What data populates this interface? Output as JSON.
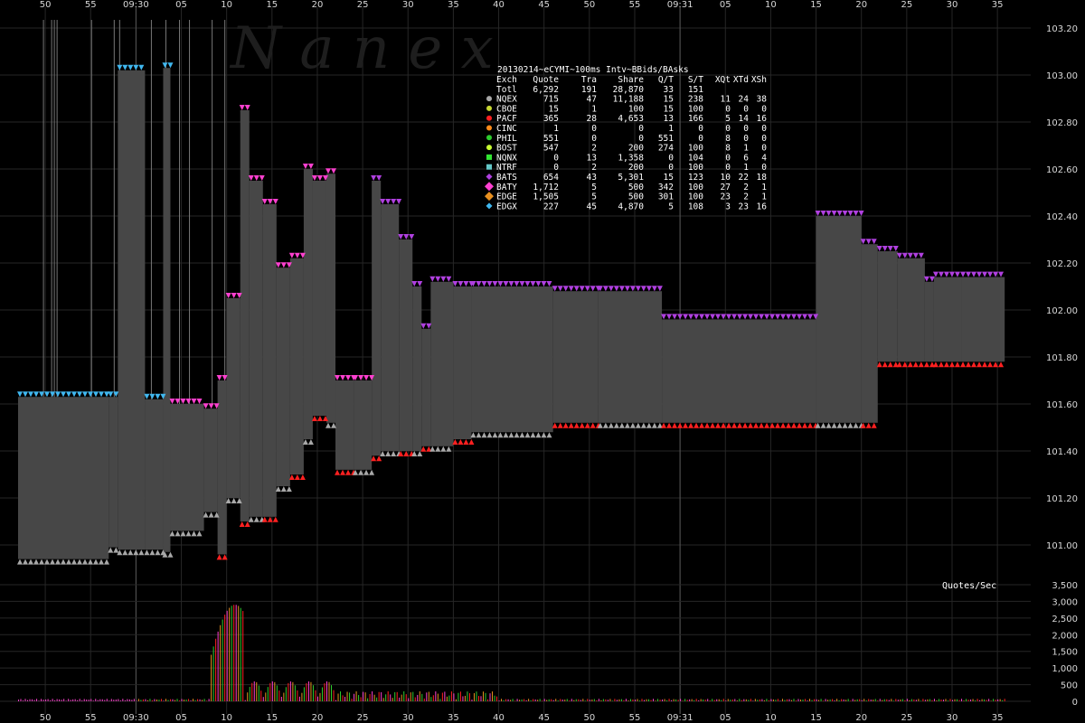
{
  "watermark": "N a n e x",
  "chart_data": {
    "type": "line",
    "title": "20130214~eCYMI~100ms Intv~BBids/BAsks",
    "y_axis": {
      "ticks": [
        "103.20",
        "103.00",
        "102.80",
        "102.60",
        "102.40",
        "102.20",
        "102.00",
        "101.80",
        "101.60",
        "101.40",
        "101.20",
        "101.00"
      ],
      "range": [
        100.9,
        103.23
      ]
    },
    "x_axis": {
      "ticks": [
        "50",
        "55",
        "09:30",
        "05",
        "10",
        "15",
        "20",
        "25",
        "30",
        "35",
        "40",
        "45",
        "50",
        "55",
        "09:31",
        "05",
        "10",
        "15",
        "20",
        "25",
        "30",
        "35"
      ],
      "range_seconds": [
        -13,
        97
      ],
      "tick_seconds": [
        -10,
        -5,
        0,
        5,
        10,
        15,
        20,
        25,
        30,
        35,
        40,
        45,
        50,
        55,
        60,
        65,
        70,
        75,
        80,
        85,
        90,
        95
      ]
    },
    "volume_axis": {
      "label": "Quotes/Sec",
      "ticks": [
        "3,500",
        "3,000",
        "2,500",
        "2,000",
        "1,500",
        "1,000",
        "500",
        "0"
      ],
      "range": [
        0,
        3500
      ]
    },
    "legend": {
      "header": [
        "Exch",
        "Quote",
        "Tra",
        "Share",
        "Q/T",
        "S/T",
        "XQt",
        "XTd",
        "XSh"
      ],
      "rows": [
        {
          "exch": "Totl",
          "quote": "6,292",
          "tra": "191",
          "share": "28,870",
          "qt": "33",
          "st": "151",
          "xqt": "",
          "xtd": "",
          "xsh": "",
          "color": "",
          "marker": "none"
        },
        {
          "exch": "NQEX",
          "quote": "715",
          "tra": "47",
          "share": "11,188",
          "qt": "15",
          "st": "238",
          "xqt": "11",
          "xtd": "24",
          "xsh": "38",
          "color": "#a8a8a8",
          "marker": "circle"
        },
        {
          "exch": "CBOE",
          "quote": "15",
          "tra": "1",
          "share": "100",
          "qt": "15",
          "st": "100",
          "xqt": "0",
          "xtd": "0",
          "xsh": "0",
          "color": "#c8d832",
          "marker": "circle"
        },
        {
          "exch": "PACF",
          "quote": "365",
          "tra": "28",
          "share": "4,653",
          "qt": "13",
          "st": "166",
          "xqt": "5",
          "xtd": "14",
          "xsh": "16",
          "color": "#ff2020",
          "marker": "circle"
        },
        {
          "exch": "CINC",
          "quote": "1",
          "tra": "0",
          "share": "0",
          "qt": "1",
          "st": "0",
          "xqt": "0",
          "xtd": "0",
          "xsh": "0",
          "color": "#ff8c1a",
          "marker": "circle"
        },
        {
          "exch": "PHIL",
          "quote": "551",
          "tra": "0",
          "share": "0",
          "qt": "551",
          "st": "0",
          "xqt": "8",
          "xtd": "0",
          "xsh": "0",
          "color": "#2ecc2e",
          "marker": "circle"
        },
        {
          "exch": "BOST",
          "quote": "547",
          "tra": "2",
          "share": "200",
          "qt": "274",
          "st": "100",
          "xqt": "8",
          "xtd": "1",
          "xsh": "0",
          "color": "#c8ff32",
          "marker": "circle"
        },
        {
          "exch": "NQNX",
          "quote": "0",
          "tra": "13",
          "share": "1,358",
          "qt": "0",
          "st": "104",
          "xqt": "0",
          "xtd": "6",
          "xsh": "4",
          "color": "#32e632",
          "marker": "square"
        },
        {
          "exch": "NTRF",
          "quote": "0",
          "tra": "2",
          "share": "200",
          "qt": "0",
          "st": "100",
          "xqt": "0",
          "xtd": "1",
          "xsh": "0",
          "color": "#64c8c8",
          "marker": "square"
        },
        {
          "exch": "BATS",
          "quote": "654",
          "tra": "43",
          "share": "5,301",
          "qt": "15",
          "st": "123",
          "xqt": "10",
          "xtd": "22",
          "xsh": "18",
          "color": "#b040e0",
          "marker": "diamond"
        },
        {
          "exch": "BATY",
          "quote": "1,712",
          "tra": "5",
          "share": "500",
          "qt": "342",
          "st": "100",
          "xqt": "27",
          "xtd": "2",
          "xsh": "1",
          "color": "#ff40d0",
          "marker": "diamond-lg"
        },
        {
          "exch": "EDGE",
          "quote": "1,505",
          "tra": "5",
          "share": "500",
          "qt": "301",
          "st": "100",
          "xqt": "23",
          "xtd": "2",
          "xsh": "1",
          "color": "#e89020",
          "marker": "diamond-lg"
        },
        {
          "exch": "EDGX",
          "quote": "227",
          "tra": "45",
          "share": "4,870",
          "qt": "5",
          "st": "108",
          "xqt": "3",
          "xtd": "23",
          "xsh": "16",
          "color": "#40b8f0",
          "marker": "diamond"
        }
      ]
    },
    "spread_segments": [
      {
        "x0": -13,
        "x1": -3,
        "bid": 100.94,
        "ask": 101.63
      },
      {
        "x0": -3,
        "x1": -2,
        "bid": 100.99,
        "ask": 101.63
      },
      {
        "x0": -2,
        "x1": 1,
        "bid": 100.98,
        "ask": 103.02
      },
      {
        "x0": 1,
        "x1": 3,
        "bid": 100.98,
        "ask": 101.62
      },
      {
        "x0": 3,
        "x1": 3.8,
        "bid": 100.97,
        "ask": 103.03
      },
      {
        "x0": 3.8,
        "x1": 7.5,
        "bid": 101.06,
        "ask": 101.6
      },
      {
        "x0": 7.5,
        "x1": 9,
        "bid": 101.14,
        "ask": 101.58
      },
      {
        "x0": 9,
        "x1": 10,
        "bid": 100.96,
        "ask": 101.7
      },
      {
        "x0": 10,
        "x1": 11.5,
        "bid": 101.2,
        "ask": 102.05
      },
      {
        "x0": 11.5,
        "x1": 12.5,
        "bid": 101.1,
        "ask": 102.85
      },
      {
        "x0": 12.5,
        "x1": 14,
        "bid": 101.12,
        "ask": 102.55
      },
      {
        "x0": 14,
        "x1": 15.5,
        "bid": 101.12,
        "ask": 102.45
      },
      {
        "x0": 15.5,
        "x1": 17,
        "bid": 101.25,
        "ask": 102.18
      },
      {
        "x0": 17,
        "x1": 18.5,
        "bid": 101.3,
        "ask": 102.22
      },
      {
        "x0": 18.5,
        "x1": 19.5,
        "bid": 101.45,
        "ask": 102.6
      },
      {
        "x0": 19.5,
        "x1": 21,
        "bid": 101.55,
        "ask": 102.55
      },
      {
        "x0": 21,
        "x1": 22,
        "bid": 101.52,
        "ask": 102.58
      },
      {
        "x0": 22,
        "x1": 24,
        "bid": 101.32,
        "ask": 101.7
      },
      {
        "x0": 24,
        "x1": 26,
        "bid": 101.32,
        "ask": 101.7
      },
      {
        "x0": 26,
        "x1": 27,
        "bid": 101.38,
        "ask": 102.55
      },
      {
        "x0": 27,
        "x1": 29,
        "bid": 101.4,
        "ask": 102.45
      },
      {
        "x0": 29,
        "x1": 30.5,
        "bid": 101.4,
        "ask": 102.3
      },
      {
        "x0": 30.5,
        "x1": 31.5,
        "bid": 101.4,
        "ask": 102.1
      },
      {
        "x0": 31.5,
        "x1": 32.5,
        "bid": 101.42,
        "ask": 101.92
      },
      {
        "x0": 32.5,
        "x1": 35,
        "bid": 101.42,
        "ask": 102.12
      },
      {
        "x0": 35,
        "x1": 37,
        "bid": 101.45,
        "ask": 102.1
      },
      {
        "x0": 37,
        "x1": 46,
        "bid": 101.48,
        "ask": 102.1
      },
      {
        "x0": 46,
        "x1": 51,
        "bid": 101.52,
        "ask": 102.08
      },
      {
        "x0": 51,
        "x1": 58,
        "bid": 101.52,
        "ask": 102.08
      },
      {
        "x0": 58,
        "x1": 75,
        "bid": 101.52,
        "ask": 101.96
      },
      {
        "x0": 75,
        "x1": 80,
        "bid": 101.52,
        "ask": 102.4
      },
      {
        "x0": 80,
        "x1": 81.8,
        "bid": 101.52,
        "ask": 102.28
      },
      {
        "x0": 81.8,
        "x1": 84,
        "bid": 101.78,
        "ask": 102.25
      },
      {
        "x0": 84,
        "x1": 87,
        "bid": 101.78,
        "ask": 102.22
      },
      {
        "x0": 87,
        "x1": 88,
        "bid": 101.78,
        "ask": 102.12
      },
      {
        "x0": 88,
        "x1": 91,
        "bid": 101.78,
        "ask": 102.14
      },
      {
        "x0": 91,
        "x1": 95.8,
        "bid": 101.78,
        "ask": 102.14
      }
    ],
    "spikes": [
      -10.2,
      -9.3,
      -9.0,
      -8.7,
      -4.9,
      -2.4,
      -1.8,
      1.7,
      3.3,
      4.8,
      5.9,
      8.4,
      9.8
    ]
  }
}
